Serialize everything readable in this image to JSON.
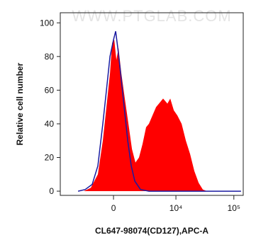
{
  "chart_data": {
    "type": "histogram",
    "watermark": "WWW.PTGLAB.COM",
    "xlabel": "CL647-98074(CD127),APC-A",
    "ylabel": "Relative cell number",
    "xscale": {
      "type": "arcsinh",
      "cofactor": 1700
    },
    "xlim": [
      -6900,
      145000
    ],
    "ylim": [
      -2.5,
      106
    ],
    "xticks": [
      0,
      {
        "value": 10000,
        "label": "10⁴"
      },
      {
        "value": 100000,
        "label": "10⁵"
      }
    ],
    "yticks": [
      0,
      20,
      40,
      60,
      80,
      100
    ],
    "series": [
      {
        "color": "#ff0000",
        "fill": true,
        "x": [
          -2520,
          -1740,
          -1120,
          -740,
          -480,
          -240,
          -95,
          48,
          191,
          336,
          534,
          789,
          1063,
          1357,
          1673,
          2023,
          2414,
          2851,
          3249,
          3801,
          4429,
          5294,
          5952,
          7094,
          7951,
          9178,
          10583,
          12580,
          14880,
          17630,
          20860,
          24720,
          29240,
          34680
        ],
        "values": [
          0,
          2,
          10,
          30,
          50,
          70,
          88,
          90,
          78,
          85,
          70,
          55,
          40,
          25,
          17,
          20,
          28,
          38,
          40,
          45,
          50,
          53,
          55,
          52,
          55,
          48,
          45,
          40,
          30,
          22,
          12,
          5,
          1,
          0
        ]
      },
      {
        "color": "#1a1aa0",
        "fill": false,
        "x": [
          -3249,
          -2330,
          -1610,
          -1120,
          -740,
          -480,
          -240,
          0,
          143,
          289,
          484,
          738,
          1006,
          1295,
          1610,
          2180,
          3249,
          133000
        ],
        "values": [
          0,
          1,
          4,
          15,
          40,
          60,
          80,
          90,
          95,
          85,
          70,
          50,
          30,
          15,
          6,
          1,
          0,
          0
        ]
      }
    ]
  }
}
